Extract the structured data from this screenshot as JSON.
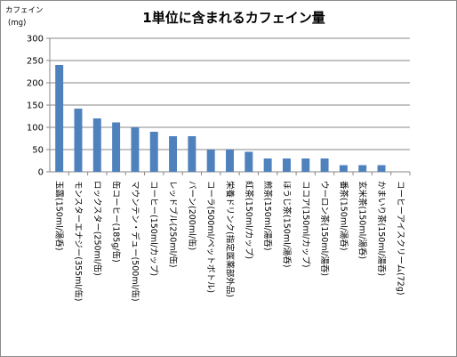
{
  "chart_data": {
    "type": "bar",
    "title": "1単位に含まれるカフェイン量",
    "ylabel": "カフェイン",
    "yunit": "(mg)",
    "ylim": [
      0,
      300
    ],
    "yticks": [
      0,
      50,
      100,
      150,
      200,
      250,
      300
    ],
    "grid": true,
    "bar_color": "#4f81bd",
    "categories": [
      "玉露(150ml/湯呑)",
      "モンスターエナジー(355ml/缶)",
      "ロックスター(250ml/缶)",
      "缶コーヒー(185g/缶)",
      "マウンテン・デュー(500ml/缶)",
      "コーヒー(150ml/カップ)",
      "レッドブル(250ml/缶)",
      "バーン(200ml/缶)",
      "コーラ(500ml/ペットボトル)",
      "栄養ドリンク(指定医薬部外品)",
      "紅茶(150ml/カップ)",
      "煎茶(150ml/湯呑)",
      "ほうじ茶(150ml/湯呑)",
      "ココア(150ml/カップ)",
      "ウーロン茶(150ml/湯呑)",
      "番茶(150ml/湯呑)",
      "玄米茶(150ml/湯呑)",
      "かまいり茶(150ml/湯呑)",
      "コーヒーアイスクリーム(72g)"
    ],
    "values": [
      240,
      142,
      120,
      111,
      100,
      90,
      80,
      80,
      50,
      50,
      45,
      30,
      30,
      30,
      30,
      15,
      15,
      15,
      0
    ]
  }
}
